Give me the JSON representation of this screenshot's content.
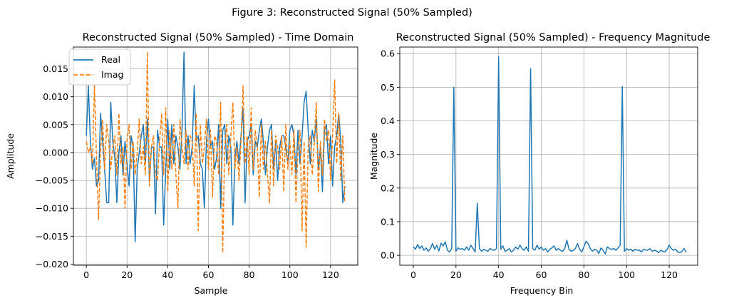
{
  "chart_data": [
    {
      "type": "line",
      "suptitle": "Figure 3: Reconstructed Signal (50% Sampled)",
      "title": "Reconstructed Signal (50% Sampled) - Time Domain",
      "xlabel": "Sample",
      "ylabel": "Amplitude",
      "xlim": [
        -6.35,
        133.35
      ],
      "ylim": [
        -0.0202,
        0.0189
      ],
      "xticks": [
        0,
        20,
        40,
        60,
        80,
        100,
        120
      ],
      "yticks": [
        -0.02,
        -0.015,
        -0.01,
        -0.005,
        0.0,
        0.005,
        0.01,
        0.015
      ],
      "ytick_labels": [
        "−0.020",
        "−0.015",
        "−0.010",
        "−0.005",
        "0.000",
        "0.005",
        "0.010",
        "0.015"
      ],
      "grid": true,
      "legend_position": "upper-left",
      "series": [
        {
          "name": "Real",
          "color": "#1f77b4",
          "style": "solid",
          "values": [
            0.003,
            0.012,
            0.002,
            -0.003,
            -0.001,
            -0.006,
            -0.005,
            0.007,
            0.002,
            -0.003,
            -0.009,
            -0.009,
            0.009,
            0.002,
            -0.001,
            -0.009,
            0.0,
            0.003,
            -0.004,
            0.002,
            -0.002,
            -0.006,
            0.003,
            0.001,
            -0.016,
            -0.003,
            0.0,
            0.003,
            0.005,
            -0.002,
            0.006,
            -0.005,
            0.001,
            0.001,
            -0.011,
            0.004,
            0.001,
            0.001,
            -0.013,
            -0.003,
            0.006,
            -0.003,
            0.005,
            -0.002,
            0.003,
            0.001,
            -0.003,
            0.004,
            0.018,
            -0.002,
            0.003,
            -0.002,
            0.001,
            0.012,
            0.002,
            0.003,
            -0.002,
            -0.003,
            -0.01,
            0.002,
            0.006,
            0.001,
            0.002,
            -0.003,
            -0.001,
            0.005,
            -0.01,
            0.004,
            0.005,
            -0.002,
            0.003,
            0.001,
            -0.013,
            -0.001,
            0.002,
            -0.002,
            0.003,
            0.008,
            -0.009,
            0.002,
            0.003,
            0.005,
            -0.004,
            0.002,
            0.001,
            0.004,
            0.006,
            0.002,
            -0.004,
            0.001,
            0.004,
            0.005,
            -0.003,
            0.002,
            -0.005,
            0.001,
            0.003,
            0.003,
            0.001,
            -0.002,
            0.004,
            0.005,
            0.003,
            -0.004,
            0.004,
            -0.002,
            0.003,
            0.009,
            0.011,
            0.004,
            -0.002,
            0.004,
            0.002,
            0.006,
            -0.003,
            0.001,
            -0.007,
            0.004,
            0.005,
            -0.002,
            0.003,
            -0.006,
            0.001,
            0.003,
            0.007,
            0.002,
            -0.009,
            -0.006
          ]
        },
        {
          "name": "Imag",
          "color": "#ff7f0e",
          "style": "dashed",
          "values": [
            0.002,
            0.0,
            0.001,
            -0.002,
            0.012,
            -0.001,
            -0.012,
            0.0,
            0.006,
            -0.003,
            0.005,
            0.002,
            -0.003,
            0.001,
            0.003,
            -0.004,
            0.007,
            -0.002,
            0.001,
            -0.01,
            0.002,
            0.005,
            -0.003,
            0.002,
            -0.004,
            0.0,
            0.006,
            -0.002,
            0.001,
            -0.004,
            0.018,
            -0.006,
            0.001,
            0.003,
            -0.004,
            -0.005,
            0.002,
            0.007,
            -0.004,
            0.008,
            -0.007,
            0.004,
            -0.003,
            0.005,
            -0.004,
            -0.01,
            0.006,
            0.001,
            -0.002,
            0.004,
            -0.003,
            0.003,
            0.002,
            -0.006,
            0.007,
            -0.014,
            0.005,
            -0.002,
            0.001,
            0.006,
            -0.003,
            0.004,
            -0.008,
            0.003,
            0.002,
            -0.004,
            0.009,
            -0.018,
            0.001,
            0.005,
            -0.004,
            0.003,
            0.009,
            -0.003,
            0.001,
            -0.005,
            0.002,
            0.012,
            -0.002,
            0.003,
            -0.004,
            0.008,
            -0.003,
            0.004,
            0.001,
            -0.008,
            0.005,
            -0.003,
            0.002,
            -0.004,
            -0.009,
            0.004,
            -0.006,
            0.003,
            0.001,
            -0.003,
            0.003,
            -0.007,
            0.005,
            -0.003,
            0.002,
            -0.004,
            0.004,
            -0.009,
            0.001,
            0.004,
            -0.014,
            0.002,
            -0.017,
            0.001,
            0.003,
            -0.004,
            0.002,
            0.009,
            -0.007,
            0.002,
            -0.004,
            0.006,
            0.002,
            0.004,
            -0.005,
            0.003,
            0.013,
            -0.002,
            0.007,
            -0.005,
            0.003,
            -0.009
          ]
        }
      ]
    },
    {
      "type": "line",
      "title": "Reconstructed Signal (50% Sampled) - Frequency Magnitude",
      "xlabel": "Frequency Bin",
      "ylabel": "Magnitude",
      "xlim": [
        -6.35,
        133.35
      ],
      "ylim": [
        -0.0295,
        0.6195
      ],
      "xticks": [
        0,
        20,
        40,
        60,
        80,
        100,
        120
      ],
      "yticks": [
        0.0,
        0.1,
        0.2,
        0.3,
        0.4,
        0.5,
        0.6
      ],
      "ytick_labels": [
        "0.0",
        "0.1",
        "0.2",
        "0.3",
        "0.4",
        "0.5",
        "0.6"
      ],
      "grid": true,
      "series": [
        {
          "name": "Magnitude",
          "color": "#1f77b4",
          "style": "solid",
          "values": [
            0.025,
            0.018,
            0.032,
            0.02,
            0.028,
            0.015,
            0.022,
            0.012,
            0.02,
            0.035,
            0.018,
            0.03,
            0.013,
            0.036,
            0.028,
            0.04,
            0.015,
            0.01,
            0.02,
            0.5,
            0.012,
            0.022,
            0.018,
            0.02,
            0.015,
            0.025,
            0.015,
            0.03,
            0.02,
            0.01,
            0.155,
            0.02,
            0.012,
            0.018,
            0.015,
            0.012,
            0.02,
            0.016,
            0.015,
            0.02,
            0.59,
            0.018,
            0.028,
            0.012,
            0.015,
            0.02,
            0.01,
            0.015,
            0.025,
            0.018,
            0.03,
            0.02,
            0.015,
            0.025,
            0.012,
            0.555,
            0.02,
            0.015,
            0.03,
            0.018,
            0.025,
            0.015,
            0.02,
            0.01,
            0.018,
            0.022,
            0.028,
            0.015,
            0.02,
            0.015,
            0.012,
            0.02,
            0.045,
            0.018,
            0.012,
            0.015,
            0.02,
            0.035,
            0.018,
            0.01,
            0.025,
            0.042,
            0.035,
            0.02,
            0.012,
            0.018,
            0.015,
            0.005,
            0.022,
            0.015,
            0.004,
            0.025,
            0.02,
            0.018,
            0.02,
            0.015,
            0.022,
            0.03,
            0.502,
            0.012,
            0.02,
            0.015,
            0.018,
            0.012,
            0.018,
            0.015,
            0.015,
            0.01,
            0.018,
            0.016,
            0.015,
            0.02,
            0.012,
            0.015,
            0.013,
            0.008,
            0.015,
            0.012,
            0.01,
            0.018,
            0.03,
            0.02,
            0.015,
            0.018,
            0.01,
            0.008,
            0.012,
            0.02,
            0.009
          ]
        }
      ]
    }
  ]
}
